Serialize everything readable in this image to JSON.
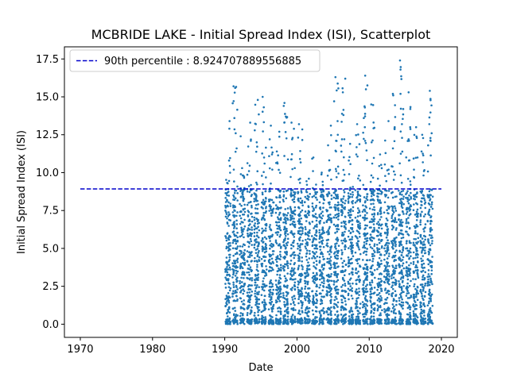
{
  "chart_data": {
    "type": "scatter",
    "title": "MCBRIDE LAKE - Initial Spread Index (ISI), Scatterplot",
    "xlabel": "Date",
    "ylabel": "Initial Spread Index (ISI)",
    "xlim": [
      1967.8,
      2022.2
    ],
    "ylim": [
      -0.87,
      18.3
    ],
    "x_ticks": [
      1970,
      1980,
      1990,
      2000,
      2010,
      2020
    ],
    "x_tick_labels": [
      "1970",
      "1980",
      "1990",
      "2000",
      "2010",
      "2020"
    ],
    "y_ticks": [
      0.0,
      2.5,
      5.0,
      7.5,
      10.0,
      12.5,
      15.0,
      17.5
    ],
    "y_tick_labels": [
      "0.0",
      "2.5",
      "5.0",
      "7.5",
      "10.0",
      "12.5",
      "15.0",
      "17.5"
    ],
    "grid": false,
    "legend_position": "top-left",
    "percentile_line": {
      "label": "90th percentile : 8.924707889556885",
      "value": 8.924707889556885,
      "x_range": [
        1970,
        2020
      ],
      "color": "#0000cc",
      "style": "dashed"
    },
    "series": [
      {
        "color": "#1f77b4",
        "seasons": [
          {
            "year": 1990.4,
            "max": 13.4,
            "highs": [
              10.8,
              12.9
            ]
          },
          {
            "year": 1991.4,
            "max": 15.7,
            "highs": [
              13.6,
              11.6,
              10.2
            ]
          },
          {
            "year": 1992.4,
            "max": 12.4,
            "highs": [
              10.3,
              9.8
            ]
          },
          {
            "year": 1993.4,
            "max": 13.3,
            "highs": [
              12.1,
              10.1
            ]
          },
          {
            "year": 1994.4,
            "max": 14.8,
            "highs": [
              13.2,
              12.0
            ]
          },
          {
            "year": 1995.4,
            "max": 15.0,
            "highs": [
              11.0,
              10.6
            ]
          },
          {
            "year": 1996.4,
            "max": 13.1,
            "highs": [
              12.2,
              10.2
            ]
          },
          {
            "year": 1997.4,
            "max": 12.7,
            "highs": [
              11.4,
              10.6
            ]
          },
          {
            "year": 1998.4,
            "max": 14.6,
            "highs": [
              13.3,
              11.1
            ]
          },
          {
            "year": 1999.4,
            "max": 13.3,
            "highs": [
              12.2,
              10.3
            ]
          },
          {
            "year": 2000.4,
            "max": 13.2,
            "highs": [
              10.9,
              9.6
            ]
          },
          {
            "year": 2001.4,
            "max": 9.6,
            "highs": [
              9.2
            ]
          },
          {
            "year": 2002.4,
            "max": 11.0,
            "highs": [
              10.1
            ]
          },
          {
            "year": 2003.4,
            "max": 10.0,
            "highs": [
              9.4
            ]
          },
          {
            "year": 2004.4,
            "max": 13.1,
            "highs": [
              9.8
            ]
          },
          {
            "year": 2005.4,
            "max": 16.3,
            "highs": [
              13.4,
              11.4,
              10.4
            ]
          },
          {
            "year": 2006.4,
            "max": 16.2,
            "highs": [
              15.3,
              13.8,
              12.2
            ]
          },
          {
            "year": 2007.4,
            "max": 11.9,
            "highs": [
              10.8,
              9.9
            ]
          },
          {
            "year": 2008.4,
            "max": 13.2,
            "highs": [
              11.2,
              9.8
            ]
          },
          {
            "year": 2009.4,
            "max": 16.4,
            "highs": [
              14.3,
              13.6,
              12.1
            ]
          },
          {
            "year": 2010.4,
            "max": 14.5,
            "highs": [
              12.0,
              10.6
            ]
          },
          {
            "year": 2011.4,
            "max": 11.2,
            "highs": [
              9.6
            ]
          },
          {
            "year": 2012.4,
            "max": 13.4,
            "highs": [
              10.2
            ]
          },
          {
            "year": 2013.4,
            "max": 15.2,
            "highs": [
              13.0,
              11.6,
              10.4
            ]
          },
          {
            "year": 2014.4,
            "max": 17.4,
            "highs": [
              16.8,
              15.2,
              13.2
            ]
          },
          {
            "year": 2015.4,
            "max": 15.3,
            "highs": [
              14.2,
              12.1,
              10.8
            ]
          },
          {
            "year": 2016.4,
            "max": 13.0,
            "highs": [
              11.0,
              10.2
            ]
          },
          {
            "year": 2017.4,
            "max": 12.5,
            "highs": [
              11.4,
              10.1
            ]
          },
          {
            "year": 2018.4,
            "max": 15.4,
            "highs": [
              13.2,
              12.6,
              11.8
            ]
          }
        ]
      }
    ]
  }
}
